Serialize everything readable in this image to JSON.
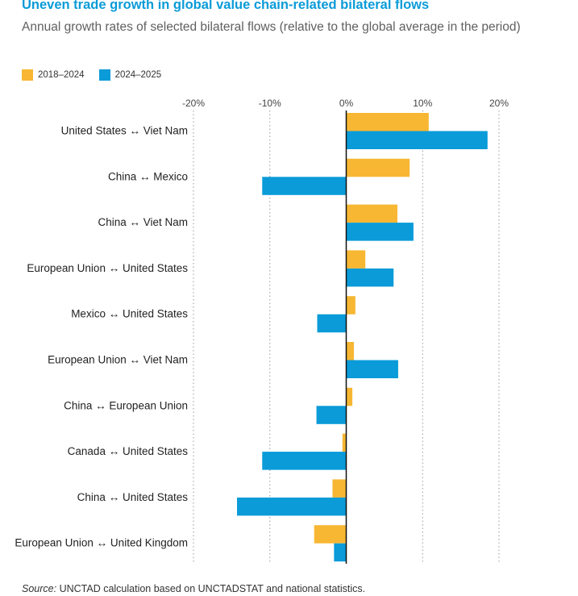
{
  "header": {
    "title": "Uneven trade growth in global value chain-related bilateral flows",
    "subtitle": "Annual growth rates of selected bilateral flows (relative to the global average in the period)"
  },
  "footer": {
    "source_label": "Source:",
    "source_text": " UNCTAD calculation based on UNCTADSTAT and national statistics."
  },
  "colors": {
    "series_2018_2024": "#f7b733",
    "series_2024_2025": "#0a9bd8",
    "gridline": "#9a9a9a",
    "title": "#0a9bd8"
  },
  "chart_data": {
    "type": "bar",
    "orientation": "horizontal",
    "title": "Uneven trade growth in global value chain-related bilateral flows",
    "subtitle": "Annual growth rates of selected bilateral flows (relative to the global average in the period)",
    "xlabel": "",
    "ylabel": "",
    "xlim": [
      -20,
      20
    ],
    "xticks": [
      -20,
      -10,
      0,
      10,
      20
    ],
    "xtick_labels": [
      "-20%",
      "-10%",
      "0%",
      "10%",
      "20%"
    ],
    "grid": "vertical dotted",
    "legend_position": "top-left",
    "categories": [
      "United States ↔ Viet Nam",
      "China ↔ Mexico",
      "China ↔ Viet Nam",
      "European Union ↔ United States",
      "Mexico ↔ United States",
      "European Union ↔ Viet Nam",
      "China ↔ European Union",
      "Canada ↔ United States",
      "China ↔ United States",
      "European Union ↔ United Kingdom"
    ],
    "series": [
      {
        "name": "2018–2024",
        "color": "#f7b733",
        "values": [
          10.8,
          8.3,
          6.7,
          2.5,
          1.2,
          1.0,
          0.8,
          -0.5,
          -1.8,
          -4.2
        ]
      },
      {
        "name": "2024–2025",
        "color": "#0a9bd8",
        "values": [
          18.5,
          -11.0,
          8.8,
          6.2,
          -3.8,
          6.8,
          -3.9,
          -11.0,
          -14.3,
          -1.6
        ]
      }
    ]
  }
}
